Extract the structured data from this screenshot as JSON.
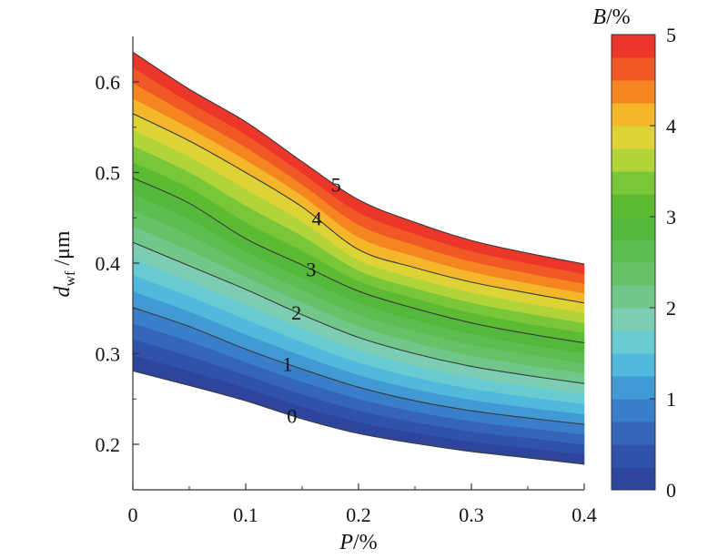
{
  "chart_data": {
    "type": "contour",
    "xlabel": "P/%",
    "ylabel": "d_wf /μm",
    "colorbar_title": "B/%",
    "xlim": [
      0,
      0.4
    ],
    "ylim": [
      0.15,
      0.65
    ],
    "x_ticks": [
      "0",
      "0.1",
      "0.2",
      "0.3",
      "0.4"
    ],
    "x_tick_values": [
      0,
      0.1,
      0.2,
      0.3,
      0.4
    ],
    "y_ticks": [
      "0.2",
      "0.3",
      "0.4",
      "0.5",
      "0.6"
    ],
    "y_tick_values": [
      0.2,
      0.3,
      0.4,
      0.5,
      0.6
    ],
    "colorbar_ticks": [
      "0",
      "1",
      "2",
      "3",
      "4",
      "5"
    ],
    "colorbar_range": [
      0,
      5
    ],
    "x": [
      0,
      0.05,
      0.1,
      0.15,
      0.2,
      0.25,
      0.3,
      0.35,
      0.4
    ],
    "contours": [
      {
        "level": 0,
        "label": "0",
        "y": [
          0.281,
          0.265,
          0.248,
          0.228,
          0.212,
          0.201,
          0.192,
          0.185,
          0.178
        ]
      },
      {
        "level": 1,
        "label": "1",
        "y": [
          0.351,
          0.33,
          0.305,
          0.283,
          0.263,
          0.248,
          0.237,
          0.229,
          0.222
        ]
      },
      {
        "level": 2,
        "label": "2",
        "y": [
          0.423,
          0.397,
          0.371,
          0.343,
          0.318,
          0.3,
          0.286,
          0.276,
          0.267
        ]
      },
      {
        "level": 3,
        "label": "3",
        "y": [
          0.494,
          0.466,
          0.427,
          0.398,
          0.369,
          0.35,
          0.334,
          0.322,
          0.312
        ]
      },
      {
        "level": 4,
        "label": "4",
        "y": [
          0.565,
          0.535,
          0.5,
          0.462,
          0.415,
          0.395,
          0.379,
          0.367,
          0.356
        ]
      },
      {
        "level": 5,
        "label": "5",
        "y": [
          0.633,
          0.592,
          0.556,
          0.512,
          0.47,
          0.445,
          0.425,
          0.411,
          0.399
        ]
      }
    ],
    "colors": [
      "#2c49a1",
      "#3a7cc5",
      "#4cc4e0",
      "#8fd2a8",
      "#5bba50",
      "#4fb530",
      "#a6d237",
      "#f0d433",
      "#f6931f",
      "#e8262a"
    ]
  }
}
